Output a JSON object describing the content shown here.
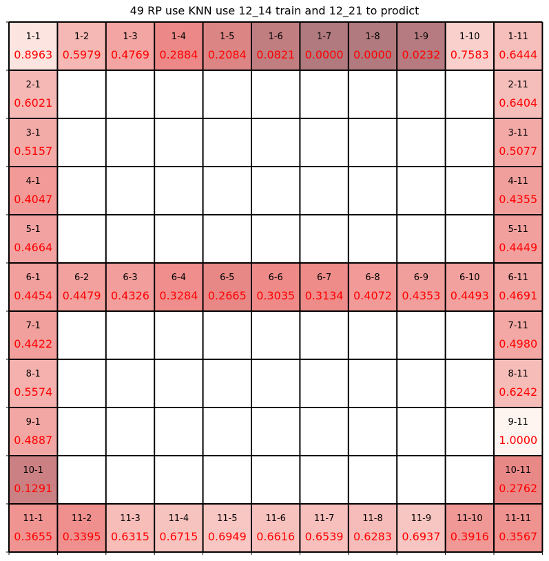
{
  "chart_data": {
    "type": "heatmap",
    "title": "49 RP use KNN use 12_14 train and 12_21 to prodict",
    "rows": 11,
    "cols": 11,
    "low_color": "#b07a7f",
    "mid_color": "#ee8a88",
    "high_color": "#fff5f0",
    "label_color": "#000000",
    "value_color": "#ff0000",
    "grid_color": "#000000",
    "cells": [
      {
        "row": 1,
        "col": 1,
        "label": "1-1",
        "value": "0.8963"
      },
      {
        "row": 1,
        "col": 2,
        "label": "1-2",
        "value": "0.5979"
      },
      {
        "row": 1,
        "col": 3,
        "label": "1-3",
        "value": "0.4769"
      },
      {
        "row": 1,
        "col": 4,
        "label": "1-4",
        "value": "0.2884"
      },
      {
        "row": 1,
        "col": 5,
        "label": "1-5",
        "value": "0.2084"
      },
      {
        "row": 1,
        "col": 6,
        "label": "1-6",
        "value": "0.0821"
      },
      {
        "row": 1,
        "col": 7,
        "label": "1-7",
        "value": "0.0000"
      },
      {
        "row": 1,
        "col": 8,
        "label": "1-8",
        "value": "0.0000"
      },
      {
        "row": 1,
        "col": 9,
        "label": "1-9",
        "value": "0.0232"
      },
      {
        "row": 1,
        "col": 10,
        "label": "1-10",
        "value": "0.7583"
      },
      {
        "row": 1,
        "col": 11,
        "label": "1-11",
        "value": "0.6444"
      },
      {
        "row": 2,
        "col": 1,
        "label": "2-1",
        "value": "0.6021"
      },
      {
        "row": 2,
        "col": 11,
        "label": "2-11",
        "value": "0.6404"
      },
      {
        "row": 3,
        "col": 1,
        "label": "3-1",
        "value": "0.5157"
      },
      {
        "row": 3,
        "col": 11,
        "label": "3-11",
        "value": "0.5077"
      },
      {
        "row": 4,
        "col": 1,
        "label": "4-1",
        "value": "0.4047"
      },
      {
        "row": 4,
        "col": 11,
        "label": "4-11",
        "value": "0.4355"
      },
      {
        "row": 5,
        "col": 1,
        "label": "5-1",
        "value": "0.4664"
      },
      {
        "row": 5,
        "col": 11,
        "label": "5-11",
        "value": "0.4449"
      },
      {
        "row": 6,
        "col": 1,
        "label": "6-1",
        "value": "0.4454"
      },
      {
        "row": 6,
        "col": 2,
        "label": "6-2",
        "value": "0.4479"
      },
      {
        "row": 6,
        "col": 3,
        "label": "6-3",
        "value": "0.4326"
      },
      {
        "row": 6,
        "col": 4,
        "label": "6-4",
        "value": "0.3284"
      },
      {
        "row": 6,
        "col": 5,
        "label": "6-5",
        "value": "0.2665"
      },
      {
        "row": 6,
        "col": 6,
        "label": "6-6",
        "value": "0.3035"
      },
      {
        "row": 6,
        "col": 7,
        "label": "6-7",
        "value": "0.3134"
      },
      {
        "row": 6,
        "col": 8,
        "label": "6-8",
        "value": "0.4072"
      },
      {
        "row": 6,
        "col": 9,
        "label": "6-9",
        "value": "0.4353"
      },
      {
        "row": 6,
        "col": 10,
        "label": "6-10",
        "value": "0.4493"
      },
      {
        "row": 6,
        "col": 11,
        "label": "6-11",
        "value": "0.4691"
      },
      {
        "row": 7,
        "col": 1,
        "label": "7-1",
        "value": "0.4422"
      },
      {
        "row": 7,
        "col": 11,
        "label": "7-11",
        "value": "0.4980"
      },
      {
        "row": 8,
        "col": 1,
        "label": "8-1",
        "value": "0.5574"
      },
      {
        "row": 8,
        "col": 11,
        "label": "8-11",
        "value": "0.6242"
      },
      {
        "row": 9,
        "col": 1,
        "label": "9-1",
        "value": "0.4887"
      },
      {
        "row": 9,
        "col": 11,
        "label": "9-11",
        "value": "1.0000"
      },
      {
        "row": 10,
        "col": 1,
        "label": "10-1",
        "value": "0.1291"
      },
      {
        "row": 10,
        "col": 11,
        "label": "10-11",
        "value": "0.2762"
      },
      {
        "row": 11,
        "col": 1,
        "label": "11-1",
        "value": "0.3655"
      },
      {
        "row": 11,
        "col": 2,
        "label": "11-2",
        "value": "0.3395"
      },
      {
        "row": 11,
        "col": 3,
        "label": "11-3",
        "value": "0.6315"
      },
      {
        "row": 11,
        "col": 4,
        "label": "11-4",
        "value": "0.6715"
      },
      {
        "row": 11,
        "col": 5,
        "label": "11-5",
        "value": "0.6949"
      },
      {
        "row": 11,
        "col": 6,
        "label": "11-6",
        "value": "0.6616"
      },
      {
        "row": 11,
        "col": 7,
        "label": "11-7",
        "value": "0.6539"
      },
      {
        "row": 11,
        "col": 8,
        "label": "11-8",
        "value": "0.6283"
      },
      {
        "row": 11,
        "col": 9,
        "label": "11-9",
        "value": "0.6937"
      },
      {
        "row": 11,
        "col": 10,
        "label": "11-10",
        "value": "0.3916"
      },
      {
        "row": 11,
        "col": 11,
        "label": "11-11",
        "value": "0.3567"
      }
    ]
  }
}
